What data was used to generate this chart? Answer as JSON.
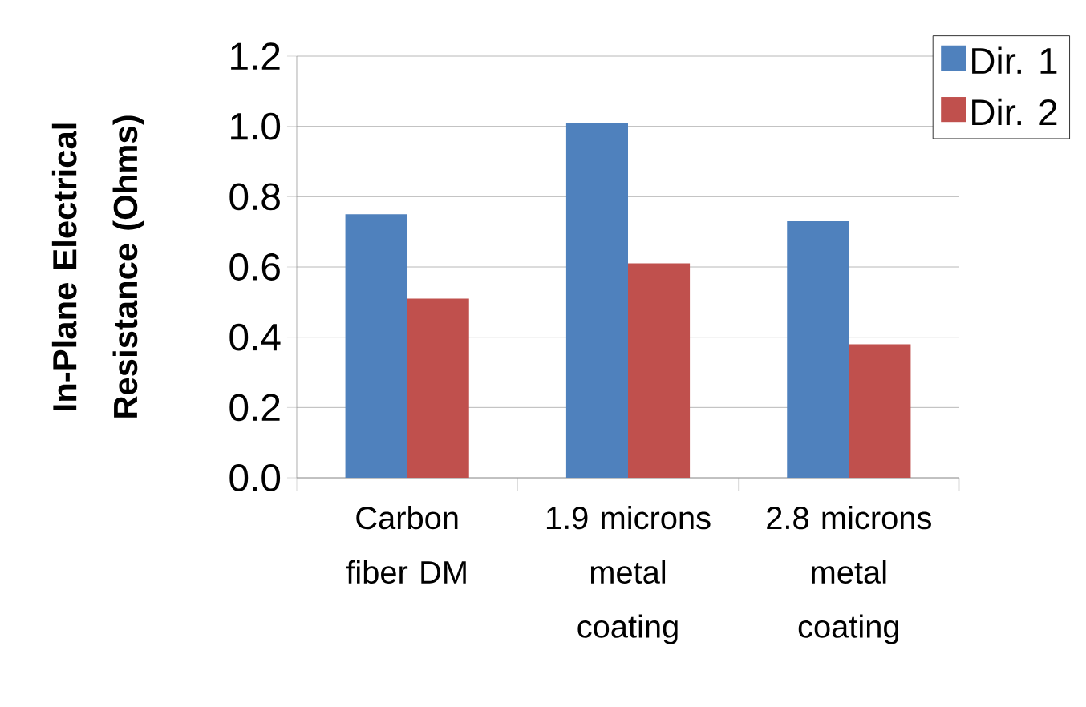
{
  "chart_data": {
    "type": "bar",
    "categories": [
      "Carbon fiber DM",
      "1.9 microns metal coating",
      "2.8 microns metal coating"
    ],
    "series": [
      {
        "name": "Dir. 1",
        "color": "#4f81bd",
        "values": [
          0.75,
          1.01,
          0.73
        ]
      },
      {
        "name": "Dir. 2",
        "color": "#c0504d",
        "values": [
          0.51,
          0.61,
          0.38
        ]
      }
    ],
    "ylabel": "In-Plane Electrical Resistance (Ohms)",
    "ylim": [
      0,
      1.2
    ],
    "yticks": [
      {
        "value": 0,
        "label": "0.0"
      },
      0.2,
      0.4,
      0.6,
      0.8,
      {
        "value": 1.0,
        "label": "1.0"
      },
      1.2
    ],
    "grid": "y",
    "legend": "top right"
  }
}
